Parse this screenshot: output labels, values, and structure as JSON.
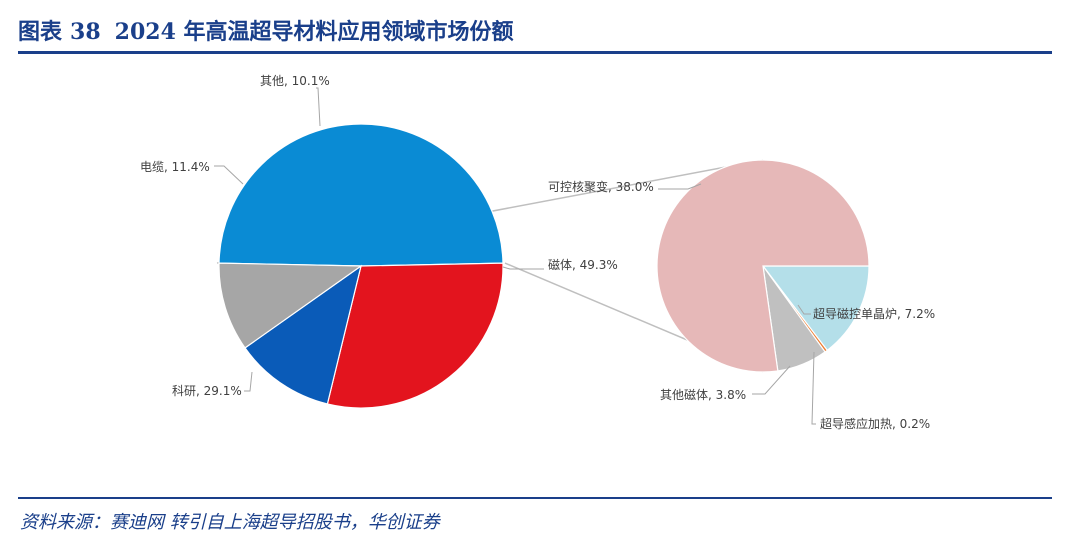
{
  "header": {
    "figure_label": "图表",
    "figure_number": "38",
    "title": "2024 年高温超导材料应用领域市场份额"
  },
  "footer": {
    "source": "资料来源：赛迪网 转引自上海超导招股书，华创证券"
  },
  "chart_data": [
    {
      "type": "pie",
      "categories": [
        "磁体",
        "科研",
        "电缆",
        "其他"
      ],
      "values": [
        49.3,
        29.1,
        11.4,
        10.1
      ],
      "labels": [
        "磁体, 49.3%",
        "科研, 29.1%",
        "电缆, 11.4%",
        "其他, 10.1%"
      ],
      "colors": [
        "#0a8bd4",
        "#e3141e",
        "#0a5bb8",
        "#a6a6a6"
      ],
      "unit": "%"
    },
    {
      "type": "pie",
      "breakdown_of": "磁体",
      "categories": [
        "超导磁控单晶炉",
        "超导感应加热",
        "其他磁体",
        "可控核聚变"
      ],
      "values": [
        7.2,
        0.2,
        3.8,
        38.0
      ],
      "labels": [
        "超导磁控单晶炉, 7.2%",
        "超导感应加热, 0.2%",
        "其他磁体, 3.8%",
        "可控核聚变, 38.0%"
      ],
      "colors": [
        "#b4dfe9",
        "#ed7d31",
        "#c0c0c0",
        "#e6b8b8"
      ],
      "unit": "%"
    }
  ]
}
